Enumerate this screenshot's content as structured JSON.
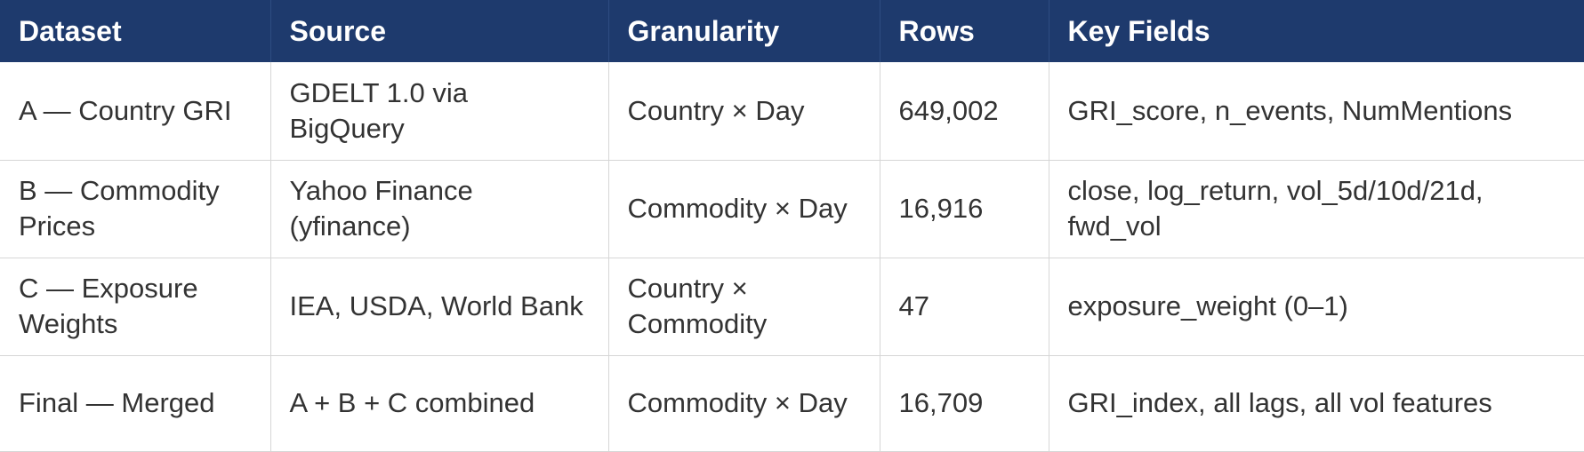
{
  "table": {
    "headers": [
      "Dataset",
      "Source",
      "Granularity",
      "Rows",
      "Key Fields"
    ],
    "rows": [
      [
        "A — Country GRI",
        "GDELT 1.0 via BigQuery",
        "Country × Day",
        "649,002",
        "GRI_score, n_events, NumMentions"
      ],
      [
        "B — Commodity Prices",
        "Yahoo Finance (yfinance)",
        "Commodity × Day",
        "16,916",
        "close, log_return, vol_5d/10d/21d, fwd_vol"
      ],
      [
        "C — Exposure Weights",
        "IEA, USDA, World Bank",
        "Country × Commodity",
        "47",
        "exposure_weight (0–1)"
      ],
      [
        "Final — Merged",
        "A + B + C combined",
        "Commodity × Day",
        "16,709",
        "GRI_index, all lags, all vol features"
      ]
    ]
  },
  "colors": {
    "header_bg": "#1e3a6d",
    "header_text": "#ffffff",
    "cell_text": "#333333",
    "grid_line": "#d6d6d6"
  }
}
